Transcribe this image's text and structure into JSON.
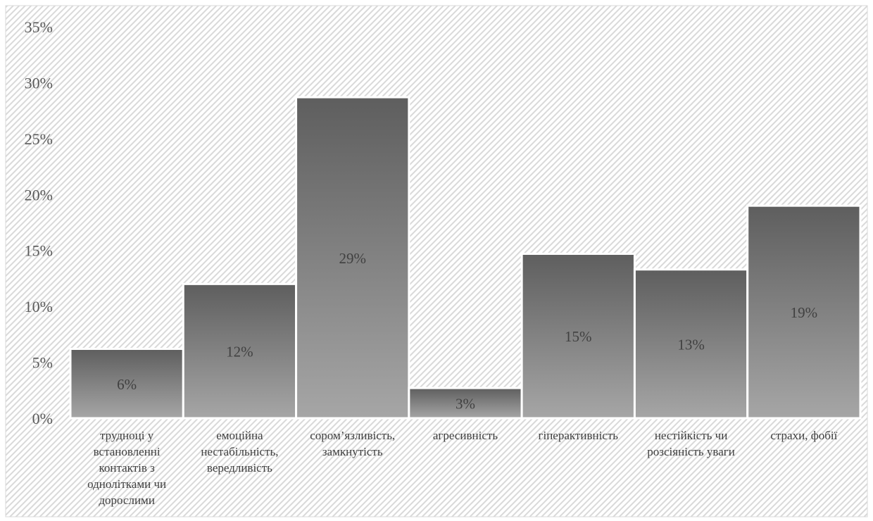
{
  "chart_data": {
    "type": "bar",
    "title": "",
    "xlabel": "",
    "ylabel": "",
    "categories": [
      [
        "трудноці у",
        "встановленні",
        "контактів з",
        "однолітками чи",
        "дорослими"
      ],
      [
        "емоційна",
        "нестабільність,",
        "вередливість"
      ],
      [
        "сором’язливість,",
        "замкнутість"
      ],
      [
        "агресивність"
      ],
      [
        "гіперактивність"
      ],
      [
        "нестійкість чи",
        "розсіяність уваги"
      ],
      [
        "страхи, фобії"
      ]
    ],
    "values": [
      6.2,
      12.0,
      28.7,
      2.7,
      14.7,
      13.3,
      19.0
    ],
    "data_labels": [
      "6%",
      "12%",
      "29%",
      "3%",
      "15%",
      "13%",
      "19%"
    ],
    "y_ticks": [
      0,
      5,
      10,
      15,
      20,
      25,
      30,
      35
    ],
    "y_tick_labels": [
      "0%",
      "5%",
      "10%",
      "15%",
      "20%",
      "25%",
      "30%",
      "35%"
    ],
    "ylim": [
      0,
      35
    ],
    "grid": false,
    "legend": "none",
    "colors": {
      "bar_top": "#5e5e5e",
      "bar_bottom": "#a6a6a6",
      "bar_edge": "#ffffff",
      "hatch_light": "#ffffff",
      "hatch_dark": "#d9d9d9",
      "frame": "#d9d9d9"
    }
  }
}
